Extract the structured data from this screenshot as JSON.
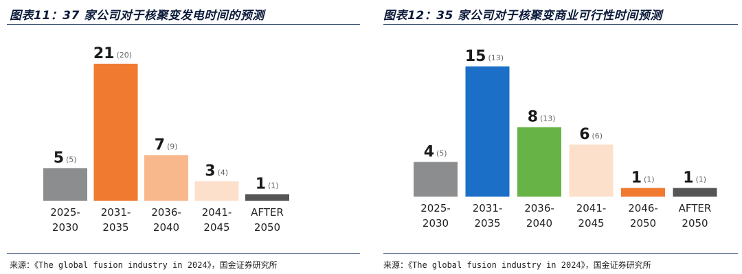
{
  "panels": [
    {
      "title": "图表11：37 家公司对于核聚变发电时间的预测",
      "source": "来源：《The global fusion industry in 2024》，国金证券研究所"
    },
    {
      "title": "图表12：35 家公司对于核聚变商业可行性时间预测",
      "source": "来源：《The global fusion industry in 2024》，国金证券研究所"
    }
  ],
  "chart_data": [
    {
      "type": "bar",
      "categories": [
        "2025-2030",
        "2031-2035",
        "2036-2040",
        "2041-2045",
        "AFTER 2050"
      ],
      "category_lines": [
        [
          "2025-",
          "2030"
        ],
        [
          "2031-",
          "2035"
        ],
        [
          "2036-",
          "2040"
        ],
        [
          "2041-",
          "2045"
        ],
        [
          "AFTER",
          "2050"
        ]
      ],
      "values": [
        5,
        21,
        7,
        3,
        1
      ],
      "prev_values": [
        5,
        20,
        9,
        4,
        1
      ],
      "prev_labels": [
        "(5)",
        "(20)",
        "(9)",
        "(4)",
        "(1)"
      ],
      "colors": [
        "#8c8d8f",
        "#f07a2f",
        "#f8b88c",
        "#fde0cb",
        "#555555"
      ],
      "ylim": [
        0,
        21
      ],
      "title": "",
      "xlabel": "",
      "ylabel": ""
    },
    {
      "type": "bar",
      "categories": [
        "2025-2030",
        "2031-2035",
        "2036-2040",
        "2041-2045",
        "2046-2050",
        "AFTER 2050"
      ],
      "category_lines": [
        [
          "2025-",
          "2030"
        ],
        [
          "2031-",
          "2035"
        ],
        [
          "2036-",
          "2040"
        ],
        [
          "2041-",
          "2045"
        ],
        [
          "2046-",
          "2050"
        ],
        [
          "AFTER",
          "2050"
        ]
      ],
      "values": [
        4,
        15,
        8,
        6,
        1,
        1
      ],
      "prev_values": [
        5,
        13,
        13,
        6,
        1,
        1
      ],
      "prev_labels": [
        "(5)",
        "(13)",
        "(13)",
        "(6)",
        "(1)",
        "(1)"
      ],
      "colors": [
        "#8c8d8f",
        "#1b6fc6",
        "#67b346",
        "#fde0cb",
        "#f07a2f",
        "#555555"
      ],
      "ylim": [
        0,
        15
      ],
      "title": "",
      "xlabel": "",
      "ylabel": ""
    }
  ]
}
